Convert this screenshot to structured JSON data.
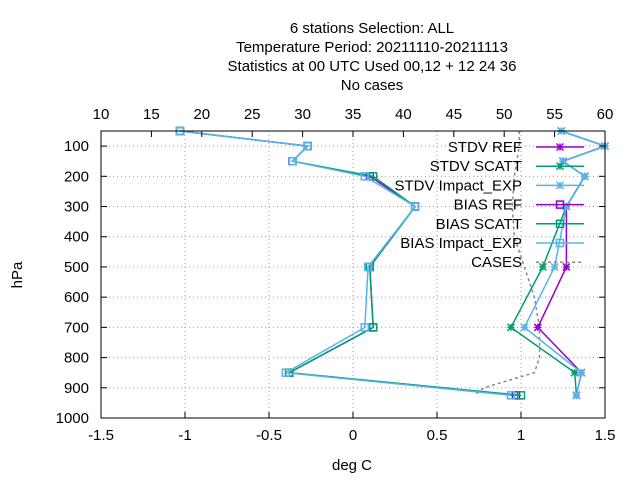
{
  "chart_data": {
    "type": "line",
    "title_lines": [
      "6 stations Selection: ALL",
      "Temperature  Period: 20211110-20211113",
      "Statistics at 00 UTC  Used  00,12  + 12 24 36",
      "No cases"
    ],
    "xlabel": "deg C",
    "ylabel": "hPa",
    "xlim": [
      -1.5,
      1.5
    ],
    "x_ticks": [
      -1.5,
      -1,
      -0.5,
      0,
      0.5,
      1,
      1.5
    ],
    "x_tick_labels": [
      "-1.5",
      "-1",
      "-0.5",
      "0",
      "0.5",
      "1",
      "1.5"
    ],
    "x2lim": [
      10,
      60
    ],
    "x2_ticks": [
      10,
      15,
      20,
      25,
      30,
      35,
      40,
      45,
      50,
      55,
      60
    ],
    "x2_tick_labels": [
      "10",
      "15",
      "20",
      "25",
      "30",
      "35",
      "40",
      "45",
      "50",
      "55",
      "60"
    ],
    "ylim": [
      1000,
      50
    ],
    "y_ticks": [
      100,
      200,
      300,
      400,
      500,
      600,
      700,
      800,
      900,
      1000
    ],
    "y_tick_labels": [
      "100",
      "200",
      "300",
      "400",
      "500",
      "600",
      "700",
      "800",
      "900",
      "1000"
    ],
    "grid": true,
    "legend_position": "top-right",
    "series": [
      {
        "name": "STDV REF",
        "color": "#9400d3",
        "marker": "star",
        "dash": "none",
        "axis": "bottom",
        "points": [
          [
            1.24,
            50
          ],
          [
            1.5,
            100
          ],
          [
            1.25,
            150
          ],
          [
            1.38,
            200
          ],
          [
            1.27,
            300
          ],
          [
            1.27,
            500
          ],
          [
            1.1,
            700
          ],
          [
            1.36,
            850
          ],
          [
            1.33,
            925
          ]
        ]
      },
      {
        "name": "STDV SCATT",
        "color": "#009e73",
        "marker": "star",
        "dash": "none",
        "axis": "bottom",
        "points": [
          [
            1.24,
            50
          ],
          [
            1.5,
            100
          ],
          [
            1.25,
            150
          ],
          [
            1.38,
            200
          ],
          [
            1.27,
            300
          ],
          [
            1.13,
            500
          ],
          [
            0.94,
            700
          ],
          [
            1.32,
            850
          ],
          [
            1.33,
            925
          ]
        ]
      },
      {
        "name": "STDV Impact_EXP",
        "color": "#56b4e9",
        "marker": "star",
        "dash": "none",
        "axis": "bottom",
        "points": [
          [
            1.24,
            50
          ],
          [
            1.5,
            100
          ],
          [
            1.25,
            150
          ],
          [
            1.38,
            200
          ],
          [
            1.27,
            300
          ],
          [
            1.2,
            500
          ],
          [
            1.02,
            700
          ],
          [
            1.36,
            850
          ],
          [
            1.33,
            925
          ]
        ]
      },
      {
        "name": "BIAS REF",
        "color": "#9400d3",
        "marker": "square",
        "dash": "none",
        "axis": "bottom",
        "points": [
          [
            -1.03,
            50
          ],
          [
            -0.27,
            100
          ],
          [
            -0.36,
            150
          ],
          [
            0.1,
            200
          ],
          [
            0.37,
            300
          ],
          [
            0.1,
            500
          ],
          [
            0.12,
            700
          ],
          [
            -0.38,
            850
          ],
          [
            0.97,
            925
          ]
        ]
      },
      {
        "name": "BIAS SCATT",
        "color": "#009e73",
        "marker": "square",
        "dash": "none",
        "axis": "bottom",
        "points": [
          [
            -1.03,
            50
          ],
          [
            -0.27,
            100
          ],
          [
            -0.36,
            150
          ],
          [
            0.12,
            200
          ],
          [
            0.37,
            300
          ],
          [
            0.1,
            500
          ],
          [
            0.12,
            700
          ],
          [
            -0.38,
            850
          ],
          [
            1.0,
            925
          ]
        ]
      },
      {
        "name": "BIAS Impact_EXP",
        "color": "#56b4e9",
        "marker": "square",
        "dash": "none",
        "axis": "bottom",
        "points": [
          [
            -1.03,
            50
          ],
          [
            -0.27,
            100
          ],
          [
            -0.36,
            150
          ],
          [
            0.07,
            200
          ],
          [
            0.37,
            300
          ],
          [
            0.09,
            500
          ],
          [
            0.07,
            700
          ],
          [
            -0.4,
            850
          ],
          [
            0.94,
            925
          ]
        ]
      },
      {
        "name": "CASES",
        "color": "#888888",
        "marker": "none",
        "dash": "dotted",
        "axis": "top",
        "points": [
          [
            51.5,
            50
          ],
          [
            51.5,
            100
          ],
          [
            51.0,
            200
          ],
          [
            50.8,
            300
          ],
          [
            51.0,
            400
          ],
          [
            52.0,
            500
          ],
          [
            53.0,
            600
          ],
          [
            53.5,
            700
          ],
          [
            53.5,
            800
          ],
          [
            53.0,
            850
          ],
          [
            48.0,
            900
          ],
          [
            47.0,
            925
          ]
        ]
      }
    ]
  }
}
